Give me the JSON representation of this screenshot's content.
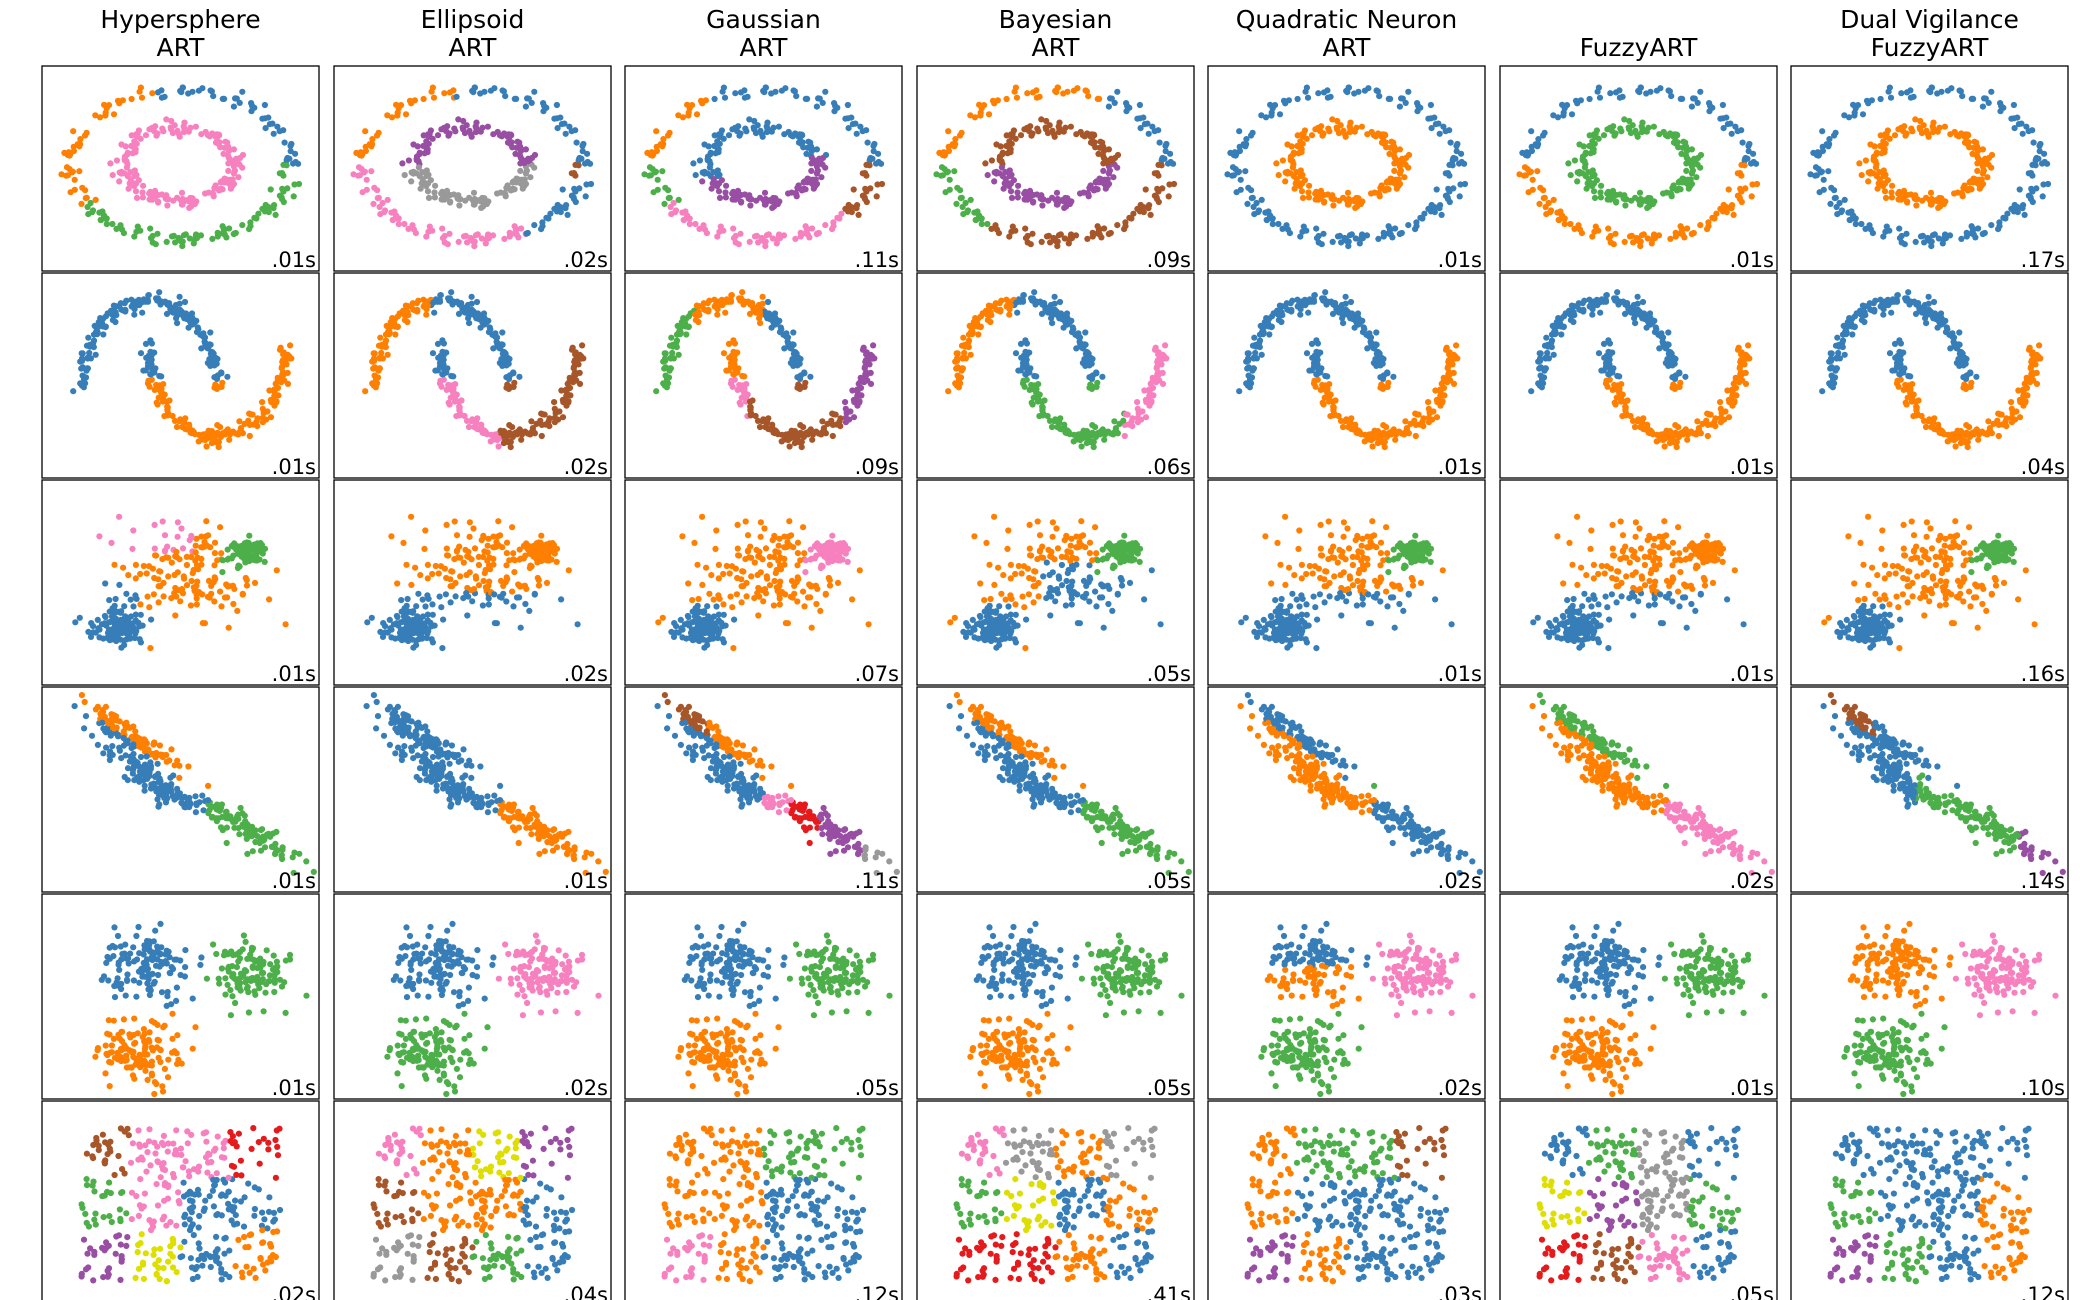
{
  "chart_data": {
    "type": "scatter",
    "columns": [
      {
        "title_lines": [
          "Hypersphere",
          "ART"
        ]
      },
      {
        "title_lines": [
          "Ellipsoid",
          "ART"
        ]
      },
      {
        "title_lines": [
          "Gaussian",
          "ART"
        ]
      },
      {
        "title_lines": [
          "Bayesian",
          "ART"
        ]
      },
      {
        "title_lines": [
          "Quadratic Neuron",
          "ART"
        ]
      },
      {
        "title_lines": [
          "",
          "FuzzyART"
        ]
      },
      {
        "title_lines": [
          "Dual Vigilance",
          "FuzzyART"
        ]
      }
    ],
    "rows": [
      {
        "dataset": "noisy_circles"
      },
      {
        "dataset": "noisy_moons"
      },
      {
        "dataset": "varied_blobs"
      },
      {
        "dataset": "anisotropic_blobs"
      },
      {
        "dataset": "blobs"
      },
      {
        "dataset": "uniform_random"
      }
    ],
    "timings": [
      [
        ".01s",
        ".02s",
        ".11s",
        ".09s",
        ".01s",
        ".01s",
        ".17s"
      ],
      [
        ".01s",
        ".02s",
        ".09s",
        ".06s",
        ".01s",
        ".01s",
        ".04s"
      ],
      [
        ".01s",
        ".02s",
        ".07s",
        ".05s",
        ".01s",
        ".01s",
        ".16s"
      ],
      [
        ".01s",
        ".01s",
        ".11s",
        ".05s",
        ".02s",
        ".02s",
        ".14s"
      ],
      [
        ".01s",
        ".02s",
        ".05s",
        ".05s",
        ".02s",
        ".01s",
        ".10s"
      ],
      [
        ".02s",
        ".04s",
        ".12s",
        ".41s",
        ".03s",
        ".05s",
        ".12s"
      ]
    ],
    "cluster_palette": [
      "#377eb8",
      "#ff7f00",
      "#4daf4a",
      "#f781bf",
      "#a65628",
      "#984ea3",
      "#999999",
      "#e41a1c",
      "#dede00"
    ],
    "axes_ticks": false,
    "grid": false
  }
}
